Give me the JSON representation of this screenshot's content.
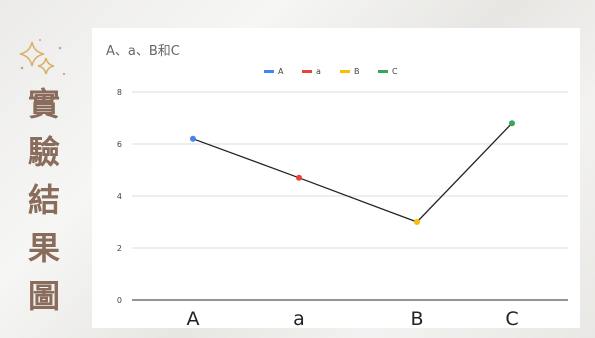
{
  "side_title": {
    "chars": [
      "實",
      "驗",
      "結",
      "果",
      "圖"
    ],
    "color": "#8a6c5c"
  },
  "decoration": {
    "icon": "sparkle-icon",
    "color": "#d8b26a"
  },
  "chart_data": {
    "type": "line",
    "title": "A、a、B和C",
    "categories": [
      "A",
      "a",
      "B",
      "C"
    ],
    "values": [
      6.2,
      4.7,
      3.0,
      6.8
    ],
    "point_colors": [
      "#4285f4",
      "#ea4335",
      "#fbbc04",
      "#34a853"
    ],
    "line_color": "#222222",
    "legend": {
      "placement": "top-center",
      "entries": [
        {
          "name": "A",
          "color": "#4285f4"
        },
        {
          "name": "a",
          "color": "#ea4335"
        },
        {
          "name": "B",
          "color": "#fbbc04"
        },
        {
          "name": "C",
          "color": "#34a853"
        }
      ]
    },
    "ylim": [
      0,
      8
    ],
    "yticks": [
      0,
      2,
      4,
      6,
      8
    ],
    "grid": true,
    "xlabel": "",
    "ylabel": ""
  }
}
